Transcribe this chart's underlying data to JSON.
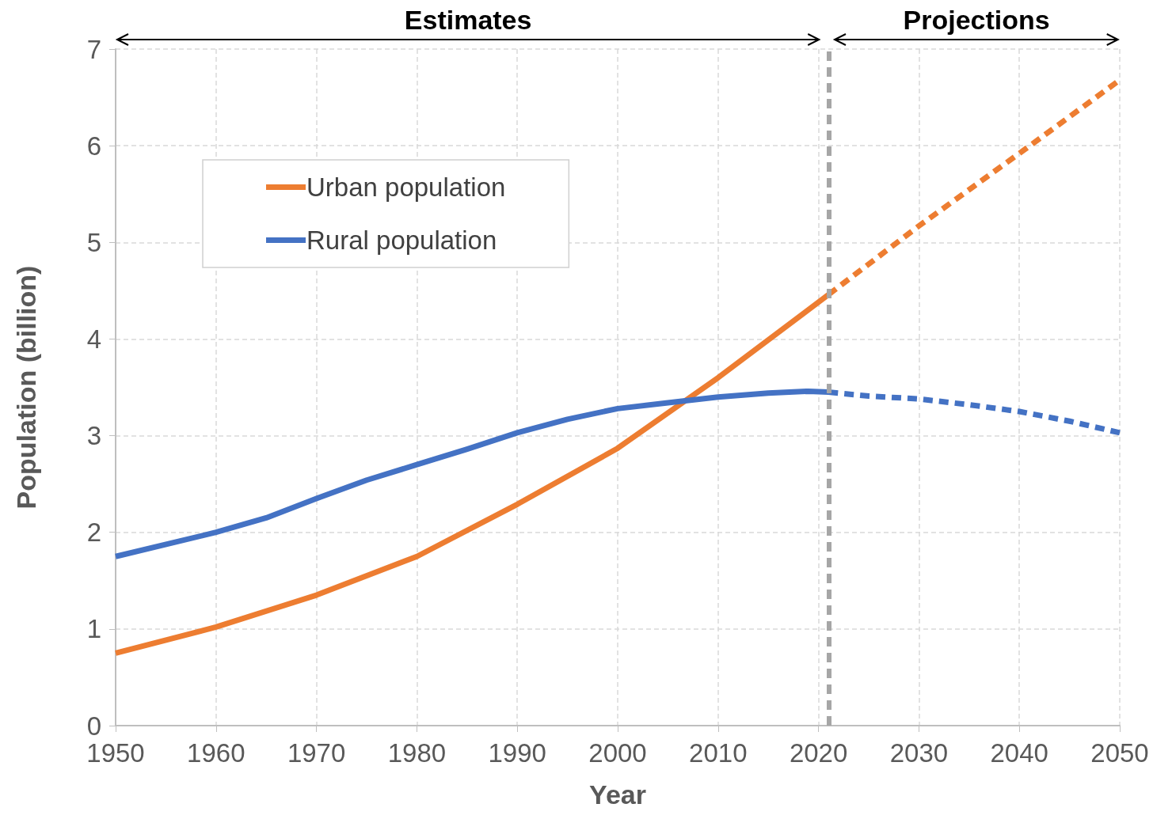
{
  "chart_data": {
    "type": "line",
    "xlabel": "Year",
    "ylabel": "Population (billion)",
    "xlim": [
      1950,
      2050
    ],
    "xticks": [
      1950,
      1960,
      1970,
      1980,
      1990,
      2000,
      2010,
      2020,
      2030,
      2040,
      2050
    ],
    "ylim": [
      0,
      7
    ],
    "yticks": [
      0,
      1,
      2,
      3,
      4,
      5,
      6,
      7
    ],
    "grid": true,
    "legend": "top left",
    "marker": "none",
    "series": [
      {
        "name": "Urban population",
        "color": "#ed7d31",
        "line_style": "solid",
        "x": [
          1950,
          1960,
          1970,
          1980,
          1990,
          2000,
          2010,
          2021
        ],
        "values": [
          0.75,
          1.02,
          1.35,
          1.75,
          2.29,
          2.87,
          3.6,
          4.46
        ]
      },
      {
        "name": "Rural population",
        "color": "#4472c4",
        "line_style": "solid",
        "x": [
          1950,
          1960,
          1965,
          1970,
          1975,
          1980,
          1985,
          1990,
          1995,
          2000,
          2005,
          2010,
          2015,
          2019,
          2021
        ],
        "values": [
          1.75,
          2.0,
          2.15,
          2.35,
          2.54,
          2.7,
          2.86,
          3.03,
          3.17,
          3.28,
          3.34,
          3.4,
          3.44,
          3.46,
          3.45
        ]
      },
      {
        "color": "#ed7d31",
        "line_style": "dashed",
        "x": [
          2021,
          2030,
          2040,
          2050
        ],
        "values": [
          4.46,
          5.17,
          5.92,
          6.68
        ]
      },
      {
        "color": "#4472c4",
        "line_style": "dashed",
        "x": [
          2021,
          2025,
          2030,
          2035,
          2040,
          2045,
          2050
        ],
        "values": [
          3.45,
          3.41,
          3.38,
          3.32,
          3.25,
          3.15,
          3.03
        ]
      }
    ],
    "ref_lines": [
      {
        "axis": "x",
        "value": 2021,
        "color": "#a6a6a6",
        "line_style": "dashed"
      }
    ],
    "annotations": [
      "Estimates",
      "Projections"
    ]
  }
}
